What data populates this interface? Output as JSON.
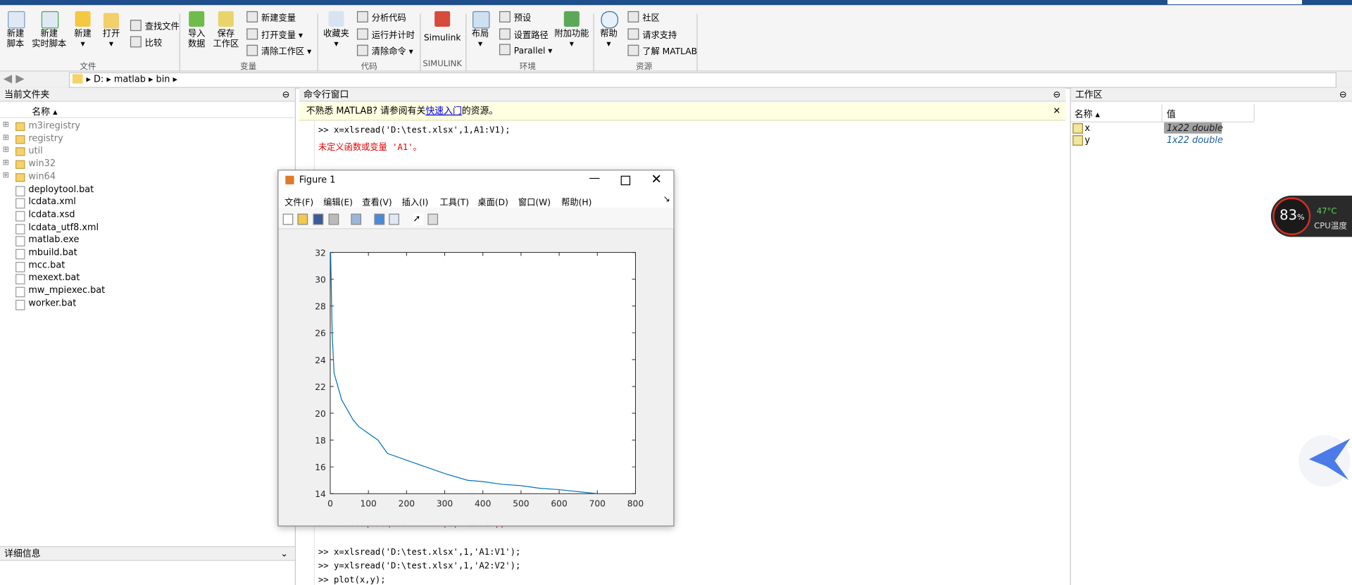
{
  "ribbon": {
    "groups": [
      {
        "label": "文件",
        "large": [
          [
            "新建",
            "脚本"
          ],
          [
            "新建",
            "实时脚本"
          ],
          [
            "新建"
          ],
          [
            "打开"
          ]
        ],
        "small": [
          "查找文件",
          "比较"
        ]
      },
      {
        "label": "变量",
        "large": [
          [
            "导入",
            "数据"
          ],
          [
            "保存",
            "工作区"
          ]
        ],
        "small": [
          "新建变量",
          "打开变量",
          "清除工作区"
        ]
      },
      {
        "label": "代码",
        "large": [
          [
            "收藏夹"
          ]
        ],
        "small": [
          "分析代码",
          "运行并计时",
          "清除命令"
        ]
      },
      {
        "label": "SIMULINK",
        "large": [
          [
            "Simulink"
          ]
        ],
        "small": []
      },
      {
        "label": "环境",
        "large": [
          [
            "布局"
          ],
          [
            "附加功能"
          ]
        ],
        "small": [
          "预设",
          "设置路径",
          "Parallel"
        ]
      },
      {
        "label": "资源",
        "large": [
          [
            "帮助"
          ]
        ],
        "small": [
          "社区",
          "请求支持",
          "了解 MATLAB"
        ]
      }
    ]
  },
  "address": [
    "D:",
    "matlab",
    "bin"
  ],
  "current_folder": {
    "title": "当前文件夹",
    "column": "名称",
    "items": [
      "m3iregistry",
      "registry",
      "util",
      "win32",
      "win64",
      "deploytool.bat",
      "lcdata.xml",
      "lcdata.xsd",
      "lcdata_utf8.xml",
      "matlab.exe",
      "mbuild.bat",
      "mcc.bat",
      "mexext.bat",
      "mw_mpiexec.bat",
      "worker.bat"
    ],
    "details": "详细信息"
  },
  "command_window": {
    "title": "命令行窗口",
    "notice": {
      "before": "不熟悉 MATLAB? 请参阅有关",
      "link": "快速入门",
      "after": "的资源。"
    },
    "lines": [
      ">> x=xlsread('D:\\test.xlsx',1,A1:V1);",
      "未定义函数或变量 'A1'。",
      "x=xlsread('D:\\test.xlsx',1,'A1:V1');",
      ">>  x=xlsread('D:\\test.xlsx',1,'A1:V1');",
      ">> y=xlsread('D:\\test.xlsx',1,'A2:V2');",
      ">> plot(x,y);"
    ]
  },
  "workspace": {
    "title": "工作区",
    "columns": [
      "名称",
      "值"
    ],
    "rows": [
      [
        "x",
        "1x22 double"
      ],
      [
        "y",
        "1x22 double"
      ]
    ]
  },
  "figure": {
    "title": "Figure 1",
    "menu": [
      "文件(F)",
      "编辑(E)",
      "查看(V)",
      "插入(I)",
      "工具(T)",
      "桌面(D)",
      "窗口(W)",
      "帮助(H)"
    ],
    "plot": {
      "type": "line",
      "x": [
        1,
        5,
        10,
        20,
        30,
        40,
        50,
        60,
        75,
        100,
        125,
        150,
        200,
        250,
        300,
        360,
        400,
        450,
        500,
        550,
        600,
        700
      ],
      "y": [
        32,
        26,
        23,
        22,
        21,
        20.5,
        20,
        19.5,
        19,
        18.5,
        18,
        17,
        16.5,
        16,
        15.5,
        15,
        14.9,
        14.7,
        14.6,
        14.4,
        14.3,
        14
      ],
      "xlim": [
        0,
        800
      ],
      "ylim": [
        14,
        32
      ],
      "xticks": [
        0,
        100,
        200,
        300,
        400,
        500,
        600,
        700,
        800
      ],
      "yticks": [
        14,
        16,
        18,
        20,
        22,
        24,
        26,
        28,
        30,
        32
      ],
      "color": "#0072bd"
    }
  },
  "cpu_widget": {
    "usage": "83",
    "unit": "%",
    "temperature": "47°C",
    "label": "CPU温度"
  }
}
